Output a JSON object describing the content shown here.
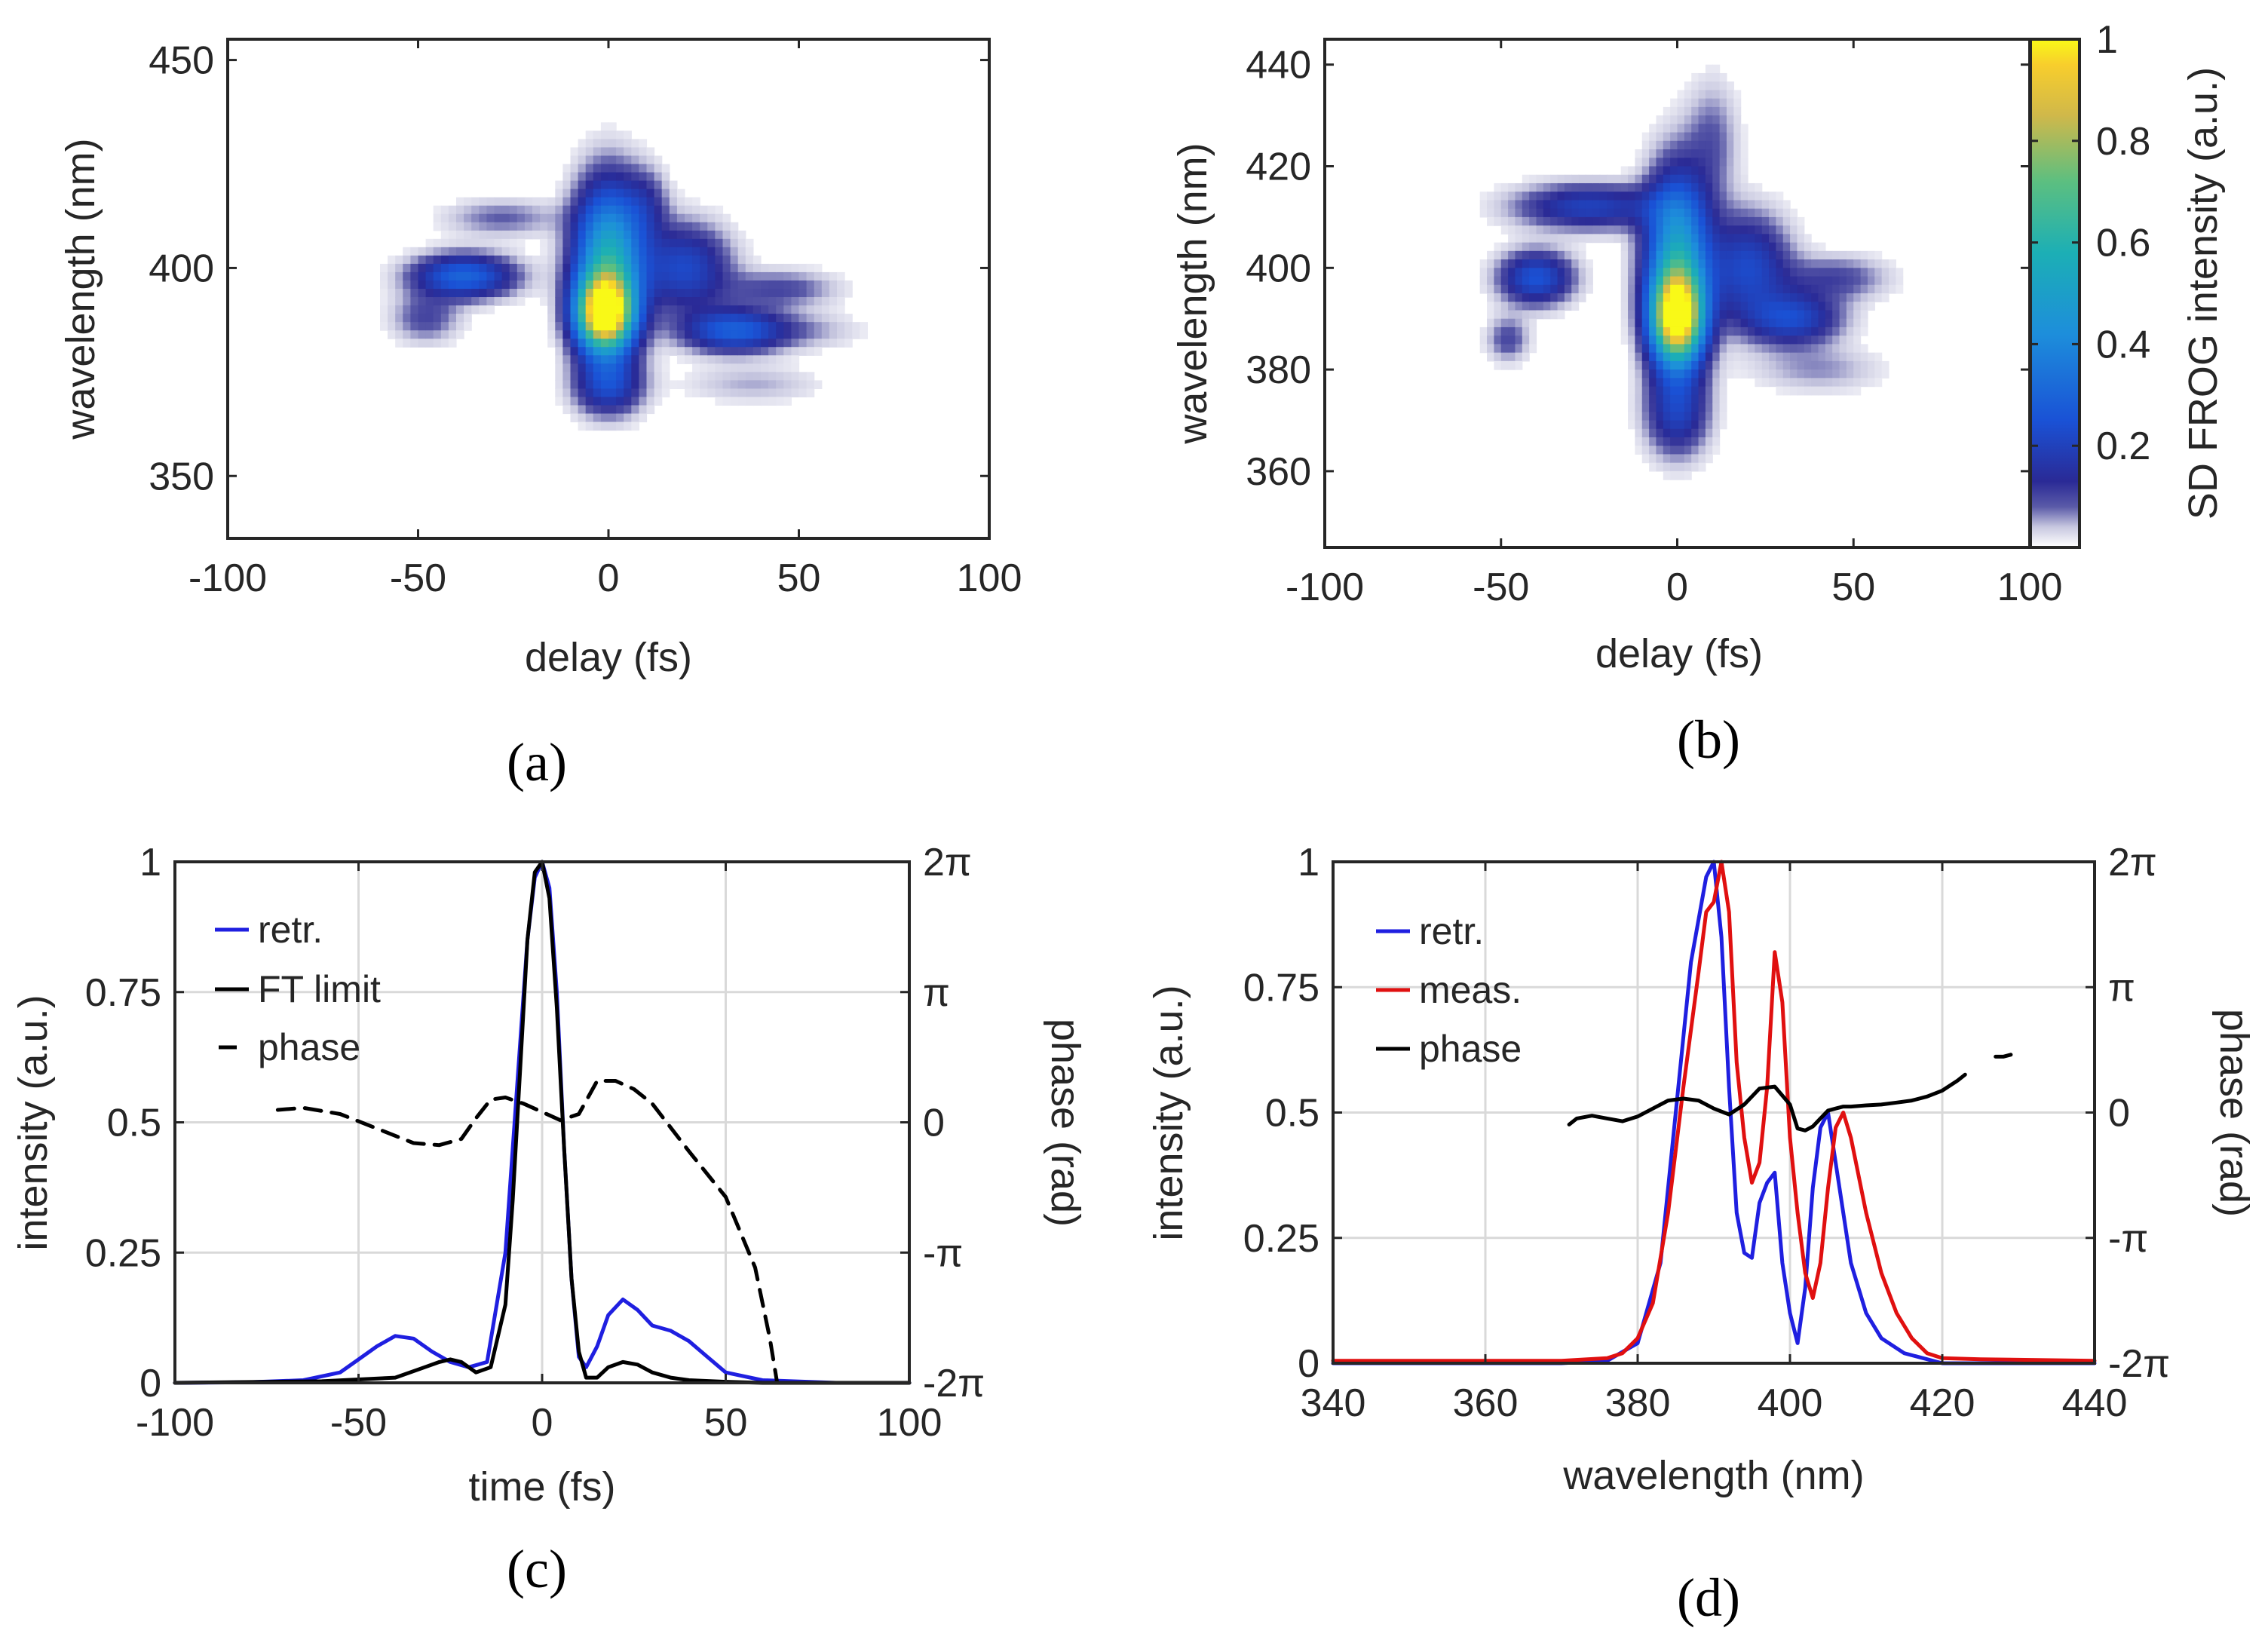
{
  "figure": {
    "panel_labels": {
      "a": "(a)",
      "b": "(b)",
      "c": "(c)",
      "d": "(d)"
    }
  },
  "chart_data": [
    {
      "id": "a",
      "type": "heatmap",
      "title": "",
      "xlabel": "delay (fs)",
      "ylabel": "wavelength (nm)",
      "xlim": [
        -100,
        100
      ],
      "ylim": [
        335,
        455
      ],
      "xticks": [
        -100,
        -50,
        0,
        50,
        100
      ],
      "xtick_labels": [
        "-100",
        "-50",
        "0",
        "50",
        "100"
      ],
      "yticks": [
        350,
        400,
        450
      ],
      "ytick_labels": [
        "350",
        "400",
        "450"
      ],
      "blobs": [
        {
          "x": 0,
          "y": 402,
          "sx": 6,
          "sy": 12,
          "a": 0.55
        },
        {
          "x": -1,
          "y": 389,
          "sx": 5,
          "sy": 6,
          "a": 1.0
        },
        {
          "x": 0,
          "y": 372,
          "sx": 6,
          "sy": 5,
          "a": 0.22
        },
        {
          "x": -38,
          "y": 398,
          "sx": 9,
          "sy": 3.5,
          "a": 0.3
        },
        {
          "x": -48,
          "y": 388,
          "sx": 6,
          "sy": 4,
          "a": 0.1
        },
        {
          "x": -28,
          "y": 412,
          "sx": 10,
          "sy": 3,
          "a": 0.08
        },
        {
          "x": 20,
          "y": 400,
          "sx": 8,
          "sy": 7,
          "a": 0.22
        },
        {
          "x": 33,
          "y": 385,
          "sx": 9,
          "sy": 3.5,
          "a": 0.28
        },
        {
          "x": 45,
          "y": 395,
          "sx": 10,
          "sy": 3,
          "a": 0.1
        },
        {
          "x": 52,
          "y": 385,
          "sx": 10,
          "sy": 3,
          "a": 0.05
        },
        {
          "x": 38,
          "y": 372,
          "sx": 12,
          "sy": 3,
          "a": 0.05
        },
        {
          "x": 10,
          "y": 415,
          "sx": 4,
          "sy": 6,
          "a": 0.1
        }
      ]
    },
    {
      "id": "b",
      "type": "heatmap",
      "title": "",
      "xlabel": "delay (fs)",
      "ylabel": "wavelength (nm)",
      "xlim": [
        -100,
        100
      ],
      "ylim": [
        345,
        445
      ],
      "xticks": [
        -100,
        -50,
        0,
        50,
        100
      ],
      "xtick_labels": [
        "-100",
        "-50",
        "0",
        "50",
        "100"
      ],
      "yticks": [
        360,
        380,
        400,
        420,
        440
      ],
      "ytick_labels": [
        "360",
        "380",
        "400",
        "420",
        "440"
      ],
      "colorbar": {
        "label": "SD FROG intensity (a.u.)",
        "ticks": [
          0.2,
          0.4,
          0.6,
          0.8,
          1
        ],
        "tick_labels": [
          "0.2",
          "0.4",
          "0.6",
          "0.8",
          "1"
        ],
        "range": [
          0,
          1
        ]
      },
      "blobs": [
        {
          "x": 0,
          "y": 402,
          "sx": 6,
          "sy": 11,
          "a": 0.5
        },
        {
          "x": 0,
          "y": 390,
          "sx": 5,
          "sy": 6,
          "a": 0.95
        },
        {
          "x": 0,
          "y": 372,
          "sx": 6,
          "sy": 6,
          "a": 0.2
        },
        {
          "x": -25,
          "y": 412,
          "sx": 14,
          "sy": 3,
          "a": 0.2
        },
        {
          "x": -40,
          "y": 398,
          "sx": 7,
          "sy": 3.5,
          "a": 0.25
        },
        {
          "x": -48,
          "y": 386,
          "sx": 4,
          "sy": 3,
          "a": 0.1
        },
        {
          "x": 20,
          "y": 400,
          "sx": 8,
          "sy": 7,
          "a": 0.22
        },
        {
          "x": 33,
          "y": 390,
          "sx": 9,
          "sy": 3.5,
          "a": 0.22
        },
        {
          "x": 45,
          "y": 398,
          "sx": 10,
          "sy": 3,
          "a": 0.1
        },
        {
          "x": 40,
          "y": 380,
          "sx": 12,
          "sy": 3,
          "a": 0.06
        },
        {
          "x": 10,
          "y": 425,
          "sx": 5,
          "sy": 8,
          "a": 0.08
        }
      ]
    },
    {
      "id": "c",
      "type": "line",
      "title": "",
      "xlabel": "time (fs)",
      "ylabel": "intensity (a.u.)",
      "ylabel_right": "phase (rad)",
      "xlim": [
        -100,
        100
      ],
      "ylim": [
        0,
        1
      ],
      "xticks": [
        -100,
        -50,
        0,
        50,
        100
      ],
      "xtick_labels": [
        "-100",
        "-50",
        "0",
        "50",
        "100"
      ],
      "yticks": [
        0,
        0.25,
        0.5,
        0.75,
        1
      ],
      "ytick_labels": [
        "0",
        "0.25",
        "0.5",
        "0.75",
        "1"
      ],
      "yticks_right_labels": [
        "-2π",
        "-π",
        "0",
        "π",
        "2π"
      ],
      "legend": [
        "retr.",
        "FT limit",
        "phase"
      ],
      "series": [
        {
          "name": "retr.",
          "color": "#1f1fe0",
          "dash": false,
          "x": [
            -100,
            -80,
            -65,
            -55,
            -50,
            -45,
            -40,
            -35,
            -30,
            -25,
            -20,
            -15,
            -10,
            -7,
            -4,
            -2,
            0,
            2,
            4,
            6,
            8,
            10,
            12,
            15,
            18,
            22,
            26,
            30,
            35,
            40,
            45,
            50,
            60,
            80,
            100
          ],
          "y": [
            0,
            0.001,
            0.005,
            0.02,
            0.045,
            0.07,
            0.09,
            0.085,
            0.06,
            0.04,
            0.03,
            0.04,
            0.25,
            0.55,
            0.85,
            0.97,
            1.0,
            0.95,
            0.75,
            0.45,
            0.2,
            0.05,
            0.03,
            0.07,
            0.13,
            0.16,
            0.14,
            0.11,
            0.1,
            0.08,
            0.05,
            0.02,
            0.005,
            0,
            0
          ]
        },
        {
          "name": "FT limit",
          "color": "#000000",
          "dash": false,
          "x": [
            -100,
            -60,
            -40,
            -32,
            -28,
            -25,
            -22,
            -18,
            -14,
            -10,
            -8,
            -6,
            -4,
            -2,
            0,
            2,
            4,
            6,
            8,
            10,
            12,
            15,
            18,
            22,
            26,
            30,
            35,
            40,
            50,
            60,
            100
          ],
          "y": [
            0,
            0.003,
            0.01,
            0.03,
            0.04,
            0.045,
            0.04,
            0.02,
            0.03,
            0.15,
            0.35,
            0.6,
            0.85,
            0.98,
            1.0,
            0.93,
            0.72,
            0.45,
            0.2,
            0.06,
            0.01,
            0.01,
            0.03,
            0.04,
            0.035,
            0.02,
            0.01,
            0.005,
            0.002,
            0,
            0
          ]
        },
        {
          "name": "phase",
          "color": "#000000",
          "dash": true,
          "axis": "right",
          "x": [
            -72,
            -65,
            -55,
            -45,
            -35,
            -28,
            -22,
            -18,
            -14,
            -10,
            -5,
            0,
            5,
            10,
            15,
            20,
            25,
            30,
            40,
            50,
            58,
            62,
            64
          ],
          "y": [
            0.3,
            0.35,
            0.2,
            -0.15,
            -0.5,
            -0.55,
            -0.4,
            0.1,
            0.55,
            0.6,
            0.45,
            0.25,
            0.05,
            0.2,
            1.0,
            1.0,
            0.8,
            0.45,
            -0.7,
            -1.8,
            -3.5,
            -5.2,
            -6.28
          ]
        }
      ]
    },
    {
      "id": "d",
      "type": "line",
      "title": "",
      "xlabel": "wavelength (nm)",
      "ylabel": "intensity (a.u.)",
      "ylabel_right": "phase (rad)",
      "xlim": [
        340,
        440
      ],
      "ylim": [
        0,
        1
      ],
      "xticks": [
        340,
        360,
        380,
        400,
        420,
        440
      ],
      "xtick_labels": [
        "340",
        "360",
        "380",
        "400",
        "420",
        "440"
      ],
      "yticks": [
        0,
        0.25,
        0.5,
        0.75,
        1
      ],
      "ytick_labels": [
        "0",
        "0.25",
        "0.5",
        "0.75",
        "1"
      ],
      "yticks_right_labels": [
        "-2π",
        "-π",
        "0",
        "π",
        "2π"
      ],
      "legend": [
        "retr.",
        "meas.",
        "phase"
      ],
      "series": [
        {
          "name": "retr.",
          "color": "#1f1fe0",
          "dash": false,
          "x": [
            340,
            370,
            376,
            380,
            383,
            385,
            387,
            389,
            390,
            391,
            392,
            393,
            394,
            395,
            396,
            397,
            398,
            399,
            400,
            401,
            402,
            403,
            404,
            405,
            406,
            408,
            410,
            412,
            415,
            420,
            440
          ],
          "y": [
            0,
            0,
            0.005,
            0.04,
            0.2,
            0.5,
            0.8,
            0.97,
            1.0,
            0.85,
            0.55,
            0.3,
            0.22,
            0.21,
            0.32,
            0.36,
            0.38,
            0.2,
            0.1,
            0.04,
            0.15,
            0.35,
            0.47,
            0.5,
            0.4,
            0.2,
            0.1,
            0.05,
            0.02,
            0,
            0
          ]
        },
        {
          "name": "meas.",
          "color": "#e01010",
          "dash": false,
          "x": [
            340,
            370,
            376,
            378,
            380,
            382,
            384,
            386,
            388,
            389,
            390,
            391,
            392,
            393,
            394,
            395,
            396,
            397,
            398,
            399,
            400,
            401,
            402,
            403,
            404,
            405,
            406,
            407,
            408,
            410,
            412,
            414,
            416,
            418,
            420,
            425,
            440
          ],
          "y": [
            0.005,
            0.005,
            0.01,
            0.02,
            0.05,
            0.12,
            0.3,
            0.55,
            0.78,
            0.9,
            0.92,
            1.0,
            0.9,
            0.6,
            0.45,
            0.36,
            0.4,
            0.55,
            0.82,
            0.72,
            0.45,
            0.3,
            0.18,
            0.13,
            0.2,
            0.35,
            0.47,
            0.5,
            0.45,
            0.3,
            0.18,
            0.1,
            0.05,
            0.02,
            0.01,
            0.008,
            0.005
          ]
        },
        {
          "name": "phase",
          "color": "#000000",
          "dash": false,
          "axis": "right",
          "x": [
            371,
            372,
            374,
            376,
            378,
            380,
            382,
            384,
            386,
            388,
            390,
            392,
            394,
            396,
            398,
            400,
            401,
            402,
            403,
            404,
            405,
            406,
            407,
            408,
            410,
            412,
            414,
            416,
            418,
            420,
            422,
            423
          ],
          "y": [
            -0.3,
            -0.15,
            -0.08,
            -0.15,
            -0.22,
            -0.1,
            0.1,
            0.3,
            0.35,
            0.3,
            0.1,
            -0.05,
            0.2,
            0.6,
            0.65,
            0.2,
            -0.4,
            -0.45,
            -0.35,
            -0.15,
            0.05,
            0.1,
            0.15,
            0.15,
            0.18,
            0.2,
            0.25,
            0.3,
            0.4,
            0.55,
            0.8,
            0.95
          ]
        },
        {
          "name": "phase",
          "color": "#000000",
          "dash": false,
          "axis": "right",
          "x": [
            427,
            428,
            429
          ],
          "y": [
            1.4,
            1.4,
            1.45
          ]
        }
      ]
    }
  ]
}
